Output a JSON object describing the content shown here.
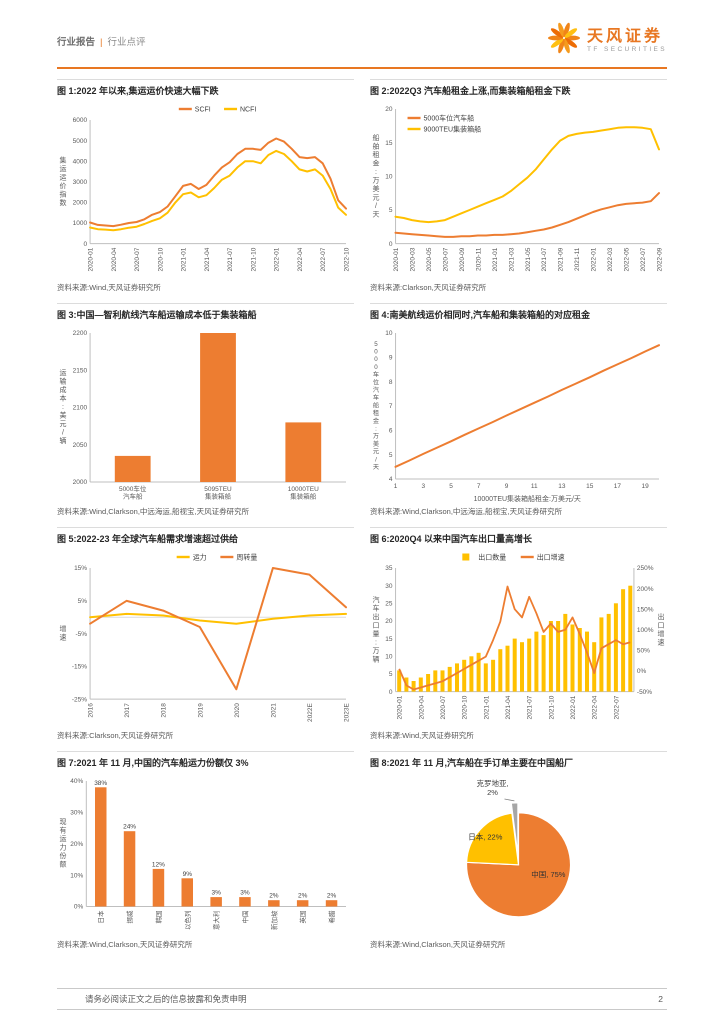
{
  "header": {
    "category": "行业报告",
    "separator": "|",
    "subcategory": "行业点评",
    "brand_cn": "天风证券",
    "brand_en": "TF SECURITIES"
  },
  "footer": {
    "disclaimer": "请务必阅读正文之后的信息披露和免责申明",
    "page_number": "2"
  },
  "theme": {
    "accent_orange": "#E87722",
    "series_orange": "#ED7D31",
    "series_yellow": "#FFC000",
    "slice_gray": "#A6A6A6"
  },
  "chart_data": [
    {
      "type": "line",
      "title": "图 1:2022 年以来,集运运价快速大幅下跌",
      "source": "资料来源:Wind,天风证券研究所",
      "ylabel": "集运运价指数",
      "ylim": [
        0,
        6000
      ],
      "ystep": 1000,
      "legend_pos": "top",
      "x_rotate": true,
      "tick_every": 3,
      "x": [
        "2020-01",
        "2020-02",
        "2020-03",
        "2020-04",
        "2020-05",
        "2020-06",
        "2020-07",
        "2020-08",
        "2020-09",
        "2020-10",
        "2020-11",
        "2020-12",
        "2021-01",
        "2021-02",
        "2021-03",
        "2021-04",
        "2021-05",
        "2021-06",
        "2021-07",
        "2021-08",
        "2021-09",
        "2021-10",
        "2021-11",
        "2021-12",
        "2022-01",
        "2022-02",
        "2022-03",
        "2022-04",
        "2022-05",
        "2022-06",
        "2022-07",
        "2022-08",
        "2022-09",
        "2022-10"
      ],
      "series": [
        {
          "name": "SCFI",
          "color": "#ED7D31",
          "values": [
            1023,
            910,
            880,
            850,
            920,
            1000,
            1050,
            1180,
            1400,
            1530,
            1800,
            2300,
            2800,
            2900,
            2650,
            2850,
            3300,
            3700,
            3950,
            4350,
            4600,
            4600,
            4550,
            4900,
            5100,
            4950,
            4600,
            4200,
            4150,
            4200,
            3900,
            3150,
            2100,
            1700
          ]
        },
        {
          "name": "NCFI",
          "color": "#FFC000",
          "values": [
            780,
            700,
            680,
            650,
            700,
            770,
            820,
            950,
            1100,
            1230,
            1500,
            2000,
            2400,
            2480,
            2250,
            2350,
            2700,
            3100,
            3300,
            3700,
            4000,
            4000,
            3900,
            4300,
            4500,
            4350,
            4000,
            3600,
            3500,
            3600,
            3300,
            2650,
            1750,
            1400
          ]
        }
      ]
    },
    {
      "type": "line",
      "title": "图 2:2022Q3 汽车船租金上涨,而集装箱船租金下跌",
      "source": "资料来源:Clarkson,天风证券研究所",
      "ylabel": "船舶租金:万美元/天",
      "ylim": [
        0,
        20
      ],
      "ystep": 5,
      "legend_pos": "topleft",
      "x_rotate": true,
      "tick_every": 2,
      "x": [
        "2020-01",
        "2020-02",
        "2020-03",
        "2020-04",
        "2020-05",
        "2020-06",
        "2020-07",
        "2020-08",
        "2020-09",
        "2020-10",
        "2020-11",
        "2020-12",
        "2021-01",
        "2021-02",
        "2021-03",
        "2021-04",
        "2021-05",
        "2021-06",
        "2021-07",
        "2021-08",
        "2021-09",
        "2021-10",
        "2021-11",
        "2021-12",
        "2022-01",
        "2022-02",
        "2022-03",
        "2022-04",
        "2022-05",
        "2022-06",
        "2022-07",
        "2022-08",
        "2022-09"
      ],
      "series": [
        {
          "name": "5000车位汽车船",
          "color": "#ED7D31",
          "values": [
            1.6,
            1.5,
            1.4,
            1.3,
            1.2,
            1.1,
            1.0,
            1.0,
            1.1,
            1.1,
            1.2,
            1.2,
            1.3,
            1.3,
            1.4,
            1.5,
            1.7,
            1.9,
            2.1,
            2.4,
            2.8,
            3.2,
            3.7,
            4.2,
            4.7,
            5.1,
            5.4,
            5.7,
            5.9,
            6.0,
            6.1,
            6.3,
            7.5
          ]
        },
        {
          "name": "9000TEU集装箱船",
          "color": "#FFC000",
          "values": [
            4.0,
            3.8,
            3.5,
            3.3,
            3.2,
            3.3,
            3.5,
            4.0,
            4.5,
            5.0,
            5.5,
            6.0,
            6.5,
            7.0,
            7.8,
            8.8,
            9.8,
            11.0,
            12.5,
            14.0,
            15.3,
            16.0,
            16.3,
            16.5,
            16.6,
            16.8,
            17.0,
            17.2,
            17.3,
            17.3,
            17.2,
            17.0,
            14.0
          ]
        }
      ]
    },
    {
      "type": "bar",
      "title": "图 3:中国—智利航线汽车船运输成本低于集装箱船",
      "source": "资料来源:Wind,Clarkson,中远海运,船视宝,天风证券研究所",
      "ylabel": "运输成本:美元/辆",
      "ylim": [
        2000,
        2200
      ],
      "ystep": 50,
      "color": "#ED7D31",
      "bar_frac": 0.42,
      "x": [
        "5000车位\n汽车船",
        "5095TEU\n集装箱船",
        "10000TEU\n集装箱船"
      ],
      "values": [
        2035,
        2200,
        2080
      ]
    },
    {
      "type": "line",
      "title": "图 4:南美航线运价相同时,汽车船和集装箱船的对应租金",
      "source": "资料来源:Wind,Clarkson,中远海运,船视宝,天风证券研究所",
      "ylabel": "5000车位汽车船租金:万美元/天",
      "xlabel": "10000TEU集装箱船租金:万美元/天",
      "ylim": [
        4,
        10
      ],
      "ystep": 1,
      "tick_every": 2,
      "x": [
        "1",
        "2",
        "3",
        "4",
        "5",
        "6",
        "7",
        "8",
        "9",
        "10",
        "11",
        "12",
        "13",
        "14",
        "15",
        "16",
        "17",
        "18",
        "19",
        "20"
      ],
      "series": [
        {
          "color": "#ED7D31",
          "values": [
            4.5,
            4.76,
            5.03,
            5.29,
            5.55,
            5.82,
            6.08,
            6.34,
            6.61,
            6.87,
            7.13,
            7.39,
            7.66,
            7.92,
            8.18,
            8.45,
            8.71,
            8.97,
            9.24,
            9.5
          ]
        }
      ]
    },
    {
      "type": "line",
      "title": "图 5:2022-23 年全球汽车船需求增速超过供给",
      "source": "资料来源:Clarkson,天风证券研究所",
      "ylabel": "增速",
      "ylim": [
        -25,
        15
      ],
      "ystep": 10,
      "percent": true,
      "legend_pos": "top",
      "x_rotate": true,
      "tick_every": 1,
      "x": [
        "2016",
        "2017",
        "2018",
        "2019",
        "2020",
        "2021",
        "2022E",
        "2023E"
      ],
      "series": [
        {
          "name": "运力",
          "color": "#FFC000",
          "values": [
            0,
            1,
            0.5,
            -1,
            -2,
            -0.5,
            0.5,
            1
          ]
        },
        {
          "name": "周转量",
          "color": "#ED7D31",
          "values": [
            -2,
            5,
            2,
            -3,
            -22,
            15,
            13,
            3
          ]
        }
      ]
    },
    {
      "type": "combo",
      "title": "图 6:2020Q4 以来中国汽车出口量高增长",
      "source": "资料来源:Wind,天风证券研究所",
      "ylabel": "汽车出口量:万辆",
      "ylim": [
        0,
        35
      ],
      "ystep": 5,
      "right": {
        "ylabel": "出口增速",
        "ylim": [
          -50,
          250
        ],
        "ystep": 50,
        "percent": true
      },
      "legend_pos": "top",
      "x_rotate": true,
      "tick_every": 3,
      "x": [
        "2020-01",
        "2020-02",
        "2020-03",
        "2020-04",
        "2020-05",
        "2020-06",
        "2020-07",
        "2020-08",
        "2020-09",
        "2020-10",
        "2020-11",
        "2020-12",
        "2021-01",
        "2021-02",
        "2021-03",
        "2021-04",
        "2021-05",
        "2021-06",
        "2021-07",
        "2021-08",
        "2021-09",
        "2021-10",
        "2021-11",
        "2021-12",
        "2022-01",
        "2022-02",
        "2022-03",
        "2022-04",
        "2022-05",
        "2022-06",
        "2022-07",
        "2022-08",
        "2022-09"
      ],
      "series": [
        {
          "name": "出口数量",
          "kind": "bar",
          "marker": "square",
          "color": "#FFC000",
          "values": [
            6,
            4,
            3,
            4,
            5,
            6,
            6,
            7,
            8,
            9,
            10,
            11,
            8,
            9,
            12,
            13,
            15,
            14,
            15,
            17,
            16,
            20,
            20,
            22,
            19,
            18,
            17,
            14,
            21,
            22,
            25,
            29,
            30
          ]
        },
        {
          "name": "出口增速",
          "kind": "line",
          "color": "#ED7D31",
          "values": [
            5,
            -35,
            -45,
            -40,
            -35,
            -30,
            -25,
            -15,
            -5,
            5,
            15,
            25,
            35,
            75,
            120,
            205,
            150,
            130,
            180,
            140,
            95,
            115,
            95,
            100,
            130,
            90,
            45,
            -5,
            55,
            65,
            75,
            65,
            70
          ]
        }
      ]
    },
    {
      "type": "bar",
      "title": "图 7:2021 年 11 月,中国的汽车船运力份额仅 3%",
      "source": "资料来源:Wind,Clarkson,天风证券研究所",
      "ylabel": "现有运力份额",
      "ylim": [
        0,
        40
      ],
      "ystep": 10,
      "percent": true,
      "color": "#ED7D31",
      "bar_frac": 0.4,
      "x_rotate": true,
      "tick_every": 1,
      "x": [
        "日本",
        "挪威",
        "韩国",
        "以色列",
        "意大利",
        "中国",
        "新加坡",
        "英国",
        "希腊"
      ],
      "values": [
        38,
        24,
        12,
        9,
        3,
        3,
        2,
        2,
        2
      ],
      "value_labels": [
        "38%",
        "24%",
        "12%",
        "9%",
        "3%",
        "3%",
        "2%",
        "2%",
        "2%"
      ]
    },
    {
      "type": "pie",
      "title": "图 8:2021 年 11 月,汽车船在手订单主要在中国船厂",
      "source": "资料来源:Wind,Clarkson,天风证券研究所",
      "slices": [
        {
          "name": "中国",
          "label": "中国, 75%",
          "value": 75,
          "color": "#ED7D31",
          "label_angle": 112,
          "label_r": 0.62
        },
        {
          "name": "日本",
          "label": "日本, 22%",
          "value": 22,
          "color": "#FFC000",
          "label_angle": 307,
          "label_r": 0.8
        },
        {
          "name": "克罗地亚",
          "label": "克罗地亚,\n2%",
          "value": 2,
          "color": "#A6A6A6",
          "explode": 10,
          "callout": true
        }
      ]
    }
  ]
}
